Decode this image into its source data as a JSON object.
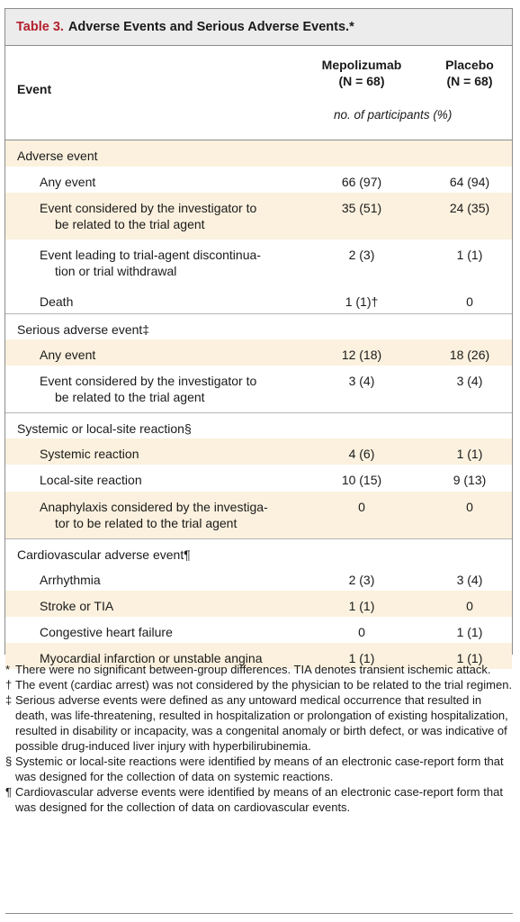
{
  "table": {
    "label": "Table 3.",
    "title": "Adverse Events and Serious Adverse Events.*",
    "col_event": "Event",
    "col_mepo": [
      "Mepolizumab",
      "(N = 68)"
    ],
    "col_placebo": [
      "Placebo",
      "(N = 68)"
    ],
    "unit": "no. of participants (%)",
    "rows": [
      {
        "type": "cat",
        "event": "Adverse event"
      },
      {
        "type": "item",
        "event": "Any event",
        "mepo": "66 (97)",
        "placebo": "64 (94)"
      },
      {
        "type": "item",
        "event": [
          "Event considered by the investigator to",
          "be related to the trial agent"
        ],
        "mepo": "35 (51)",
        "placebo": "24 (35)"
      },
      {
        "type": "item",
        "event": [
          "Event leading to trial-agent discontinua-",
          "tion or trial withdrawal"
        ],
        "mepo": "2 (3)",
        "placebo": "1 (1)"
      },
      {
        "type": "item",
        "event": "Death",
        "mepo": "1 (1)†",
        "placebo": "0"
      },
      {
        "type": "cat",
        "event": "Serious adverse event‡"
      },
      {
        "type": "item",
        "event": "Any event",
        "mepo": "12 (18)",
        "placebo": "18 (26)"
      },
      {
        "type": "item",
        "event": [
          "Event considered by the investigator to",
          "be related to the trial agent"
        ],
        "mepo": "3 (4)",
        "placebo": "3 (4)"
      },
      {
        "type": "cat",
        "event": "Systemic or local-site reaction§"
      },
      {
        "type": "item",
        "event": "Systemic reaction",
        "mepo": "4 (6)",
        "placebo": "1 (1)"
      },
      {
        "type": "item",
        "event": "Local-site reaction",
        "mepo": "10 (15)",
        "placebo": "9 (13)"
      },
      {
        "type": "item",
        "event": [
          "Anaphylaxis considered by the investiga-",
          "tor to be related to the trial agent"
        ],
        "mepo": "0",
        "placebo": "0"
      },
      {
        "type": "cat",
        "event": "Cardiovascular adverse event¶"
      },
      {
        "type": "item",
        "event": "Arrhythmia",
        "mepo": "2 (3)",
        "placebo": "3 (4)"
      },
      {
        "type": "item",
        "event": "Stroke or TIA",
        "mepo": "1 (1)",
        "placebo": "0"
      },
      {
        "type": "item",
        "event": "Congestive heart failure",
        "mepo": "0",
        "placebo": "1 (1)"
      },
      {
        "type": "item",
        "event": "Myocardial infarction or unstable angina",
        "mepo": "1 (1)",
        "placebo": "1 (1)"
      }
    ]
  },
  "footnotes": [
    {
      "sym": "*",
      "text": "There were no significant between-group differences. TIA denotes transient ischemic attack."
    },
    {
      "sym": "†",
      "text": "The event (cardiac arrest) was not considered by the physician to be related to the trial regimen."
    },
    {
      "sym": "‡",
      "text": "Serious adverse events were defined as any untoward medical occurrence that resulted in death, was life-threatening, resulted in hospitalization or prolongation of existing hospitalization, resulted in disability or incapacity, was a congenital anomaly or birth defect, or was indicative of possible drug-induced liver injury with hyperbilirubinemia."
    },
    {
      "sym": "§",
      "text": "Systemic or local-site reactions were identified by means of an electronic case-report form that was designed for the collection of data on systemic reactions."
    },
    {
      "sym": "¶",
      "text": "Cardiovascular adverse events were identified by means of an electronic case-report form that was designed for the collection of data on cardiovascular events."
    }
  ],
  "colors": {
    "label": "#b3202e",
    "shade": "#fbf1de",
    "title_bg": "#ececec"
  }
}
